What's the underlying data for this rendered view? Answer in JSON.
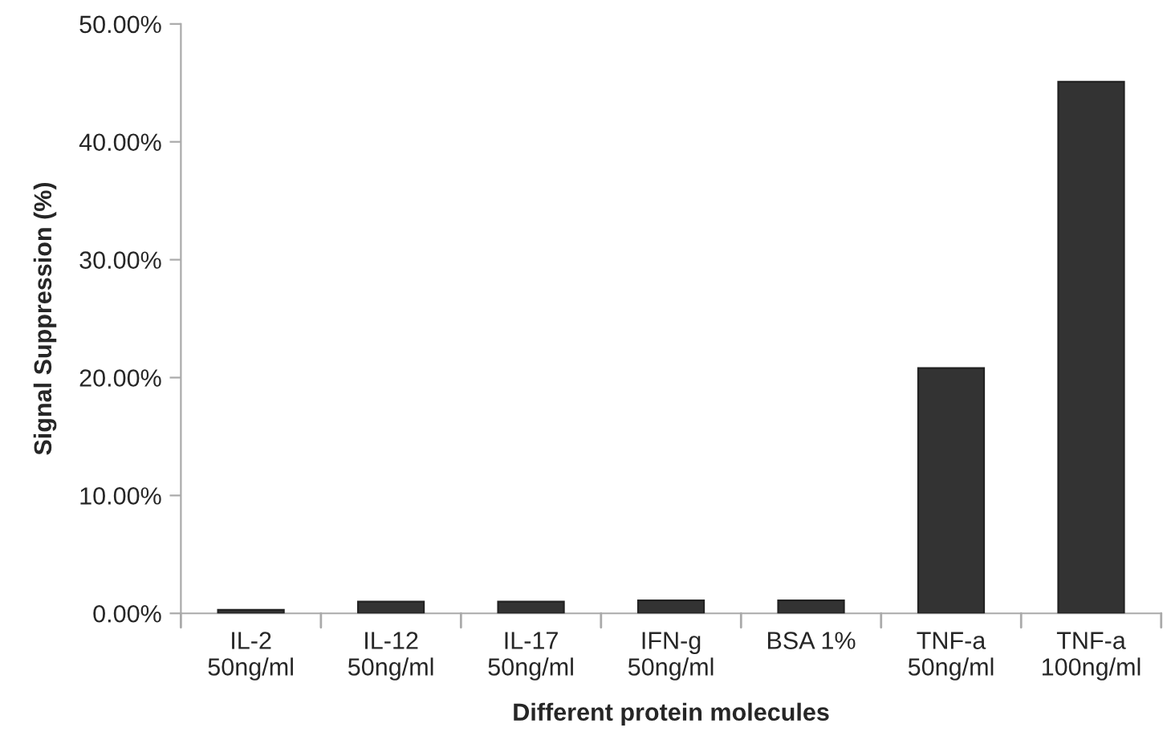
{
  "chart_data": {
    "type": "bar",
    "xlabel": "Different protein molecules",
    "ylabel": "Signal Suppression (%)",
    "categories": [
      "IL-2\n50ng/ml",
      "IL-12\n50ng/ml",
      "IL-17\n50ng/ml",
      "IFN-g\n50ng/ml",
      "BSA 1%",
      "TNF-a\n50ng/ml",
      "TNF-a\n100ng/ml"
    ],
    "values": [
      0.3,
      1.0,
      1.0,
      1.1,
      1.1,
      20.8,
      45.1
    ],
    "color": "#333333",
    "ylim": [
      0,
      50
    ],
    "yticks": [
      {
        "value": 0,
        "label": "0.00%"
      },
      {
        "value": 10,
        "label": "10.00%"
      },
      {
        "value": 20,
        "label": "20.00%"
      },
      {
        "value": 30,
        "label": "30.00%"
      },
      {
        "value": 40,
        "label": "40.00%"
      },
      {
        "value": 50,
        "label": "50.00%"
      }
    ],
    "grid": false,
    "legend": false
  }
}
